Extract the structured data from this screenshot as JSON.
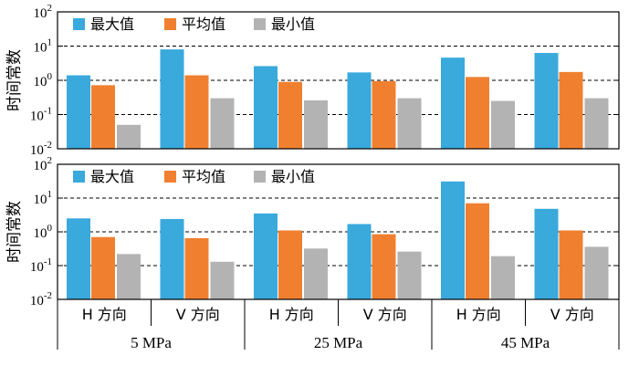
{
  "chart_data": [
    {
      "type": "bar",
      "scale": "log",
      "ylabel": "时间常数",
      "ylim": [
        0.01,
        100
      ],
      "yticks": [
        {
          "base": "10",
          "exp": "2"
        },
        {
          "base": "10",
          "exp": "1"
        },
        {
          "base": "10",
          "exp": "0"
        },
        {
          "base": "10",
          "exp": "-1"
        },
        {
          "base": "10",
          "exp": "-2"
        }
      ],
      "legend": [
        "最大值",
        "平均值",
        "最小值"
      ],
      "categories": [
        "H 方向",
        "V 方向",
        "H 方向",
        "V 方向",
        "H 方向",
        "V 方向"
      ],
      "groups": [
        "5 MPa",
        "25 MPa",
        "45 MPa"
      ],
      "series": [
        {
          "name": "最大值",
          "values": [
            1.4,
            8.0,
            2.6,
            1.7,
            4.6,
            6.3
          ]
        },
        {
          "name": "平均值",
          "values": [
            0.72,
            1.4,
            0.9,
            0.95,
            1.25,
            1.75
          ]
        },
        {
          "name": "最小值",
          "values": [
            0.05,
            0.3,
            0.26,
            0.3,
            0.25,
            0.3
          ]
        }
      ]
    },
    {
      "type": "bar",
      "scale": "log",
      "ylabel": "时间常数",
      "ylim": [
        0.01,
        100
      ],
      "yticks": [
        {
          "base": "10",
          "exp": "2"
        },
        {
          "base": "10",
          "exp": "1"
        },
        {
          "base": "10",
          "exp": "0"
        },
        {
          "base": "10",
          "exp": "-1"
        },
        {
          "base": "10",
          "exp": "-2"
        }
      ],
      "legend": [
        "最大值",
        "平均值",
        "最小值"
      ],
      "categories": [
        "H 方向",
        "V 方向",
        "H 方向",
        "V 方向",
        "H 方向",
        "V 方向"
      ],
      "groups": [
        "5 MPa",
        "25 MPa",
        "45 MPa"
      ],
      "series": [
        {
          "name": "最大值",
          "values": [
            2.5,
            2.4,
            3.5,
            1.7,
            31,
            4.8
          ]
        },
        {
          "name": "平均值",
          "values": [
            0.7,
            0.65,
            1.1,
            0.85,
            7.0,
            1.1
          ]
        },
        {
          "name": "最小值",
          "values": [
            0.22,
            0.13,
            0.32,
            0.26,
            0.19,
            0.36
          ]
        }
      ]
    }
  ],
  "colors": {
    "max": "#3aa9dc",
    "avg": "#f08030",
    "min": "#b3b3b3",
    "axis": "#000000"
  }
}
